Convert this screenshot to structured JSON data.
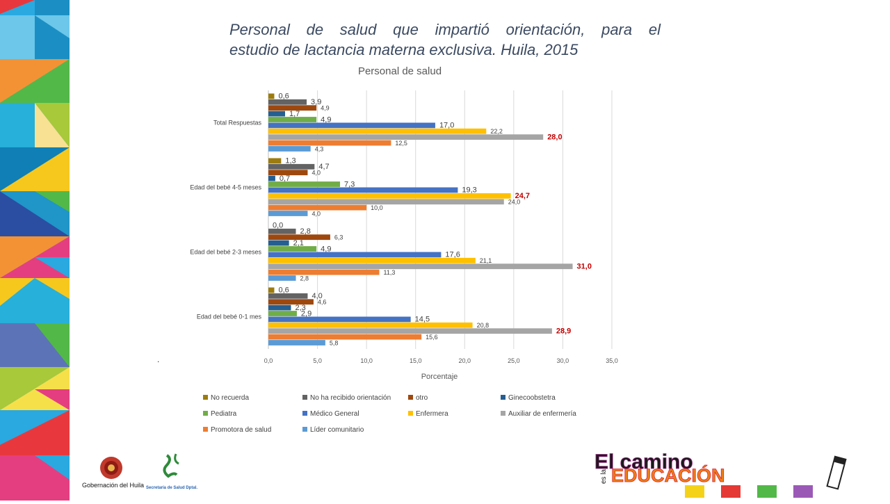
{
  "slide": {
    "title_line1": "Personal de salud que impartió orientación, para el",
    "title_line2": "estudio de lactancia materna exclusiva. Huila, 2015",
    "stray_mark": ".",
    "footer_left_label": "Gobernación del Huila",
    "seal_text": "Secretaría de Salud Dptal.",
    "edu_logo_top": "El camino",
    "edu_logo_side": "es la",
    "edu_logo_main": "EDUCACIÓN"
  },
  "colors": {
    "No recuerda": "#9c7c0f",
    "No ha recibido orientación": "#636363",
    "otro": "#9e480e",
    "Ginecoobstetra": "#255e91",
    "Pediatra": "#70ad47",
    "Médico General": "#4472c4",
    "Enfermera": "#ffc000",
    "Auxiliar de enfermería": "#a5a5a5",
    "Promotora de salud": "#ed7d31",
    "Líder comunitario": "#5b9bd5",
    "highlight_label": "#c00000"
  },
  "chart_data": {
    "type": "bar",
    "orientation": "horizontal",
    "title": "Personal de salud",
    "xlabel": "Porcentaje",
    "ylabel": "",
    "xlim": [
      0,
      35
    ],
    "xticks": [
      "0,0",
      "5,0",
      "10,0",
      "15,0",
      "20,0",
      "25,0",
      "30,0",
      "35,0"
    ],
    "grid": true,
    "legend_position": "bottom",
    "categories": [
      "Total Respuestas",
      "Edad del bebé 4-5 meses",
      "Edad del bebé 2-3 meses",
      "Edad del bebé 0-1 mes"
    ],
    "series": [
      {
        "name": "No recuerda",
        "values": [
          0.6,
          1.3,
          0.0,
          0.6
        ],
        "labels": [
          "0,6",
          "1,3",
          "0,0",
          "0,6"
        ]
      },
      {
        "name": "No ha recibido orientación",
        "values": [
          3.9,
          4.7,
          2.8,
          4.0
        ],
        "labels": [
          "3,9",
          "4,7",
          "2,8",
          "4,0"
        ]
      },
      {
        "name": "otro",
        "values": [
          4.9,
          4.0,
          6.3,
          4.6
        ],
        "labels": [
          "4,9",
          "4,0",
          "6,3",
          "4,6"
        ]
      },
      {
        "name": "Ginecoobstetra",
        "values": [
          1.7,
          0.7,
          2.1,
          2.3
        ],
        "labels": [
          "1,7",
          "0,7",
          "2,1",
          "2,3"
        ]
      },
      {
        "name": "Pediatra",
        "values": [
          4.9,
          7.3,
          4.9,
          2.9
        ],
        "labels": [
          "4,9",
          "7,3",
          "4,9",
          "2,9"
        ]
      },
      {
        "name": "Médico General",
        "values": [
          17.0,
          19.3,
          17.6,
          14.5
        ],
        "labels": [
          "17,0",
          "19,3",
          "17,6",
          "14,5"
        ]
      },
      {
        "name": "Enfermera",
        "values": [
          22.2,
          24.7,
          21.1,
          20.8
        ],
        "labels": [
          "22,2",
          "24,7",
          "21,1",
          "20,8"
        ]
      },
      {
        "name": "Auxiliar de enfermería",
        "values": [
          28.0,
          24.0,
          31.0,
          28.9
        ],
        "labels": [
          "28,0",
          "24,0",
          "31,0",
          "28,9"
        ]
      },
      {
        "name": "Promotora de salud",
        "values": [
          12.5,
          10.0,
          11.3,
          15.6
        ],
        "labels": [
          "12,5",
          "10,0",
          "11,3",
          "15,6"
        ]
      },
      {
        "name": "Líder comunitario",
        "values": [
          4.3,
          4.0,
          2.8,
          5.8
        ],
        "labels": [
          "4,3",
          "4,0",
          "2,8",
          "5,8"
        ]
      }
    ]
  }
}
